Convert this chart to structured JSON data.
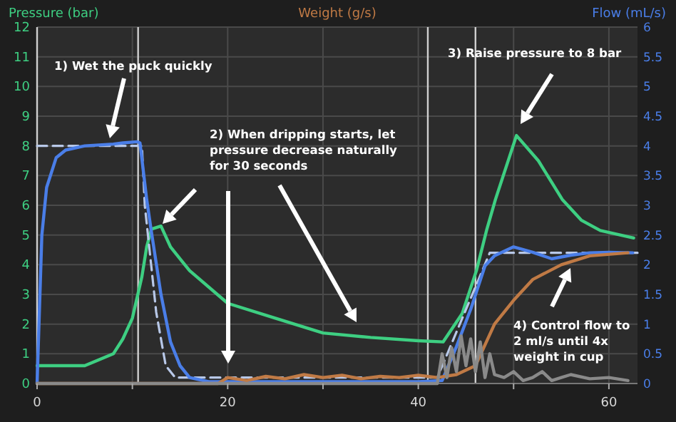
{
  "chart_data": {
    "type": "line",
    "ylabel": "Pressure (bar)",
    "y2label": "Flow (mL/s)",
    "xlim": [
      0,
      63
    ],
    "xticks": [
      0,
      {
        "value": 10,
        "label": null
      },
      20,
      {
        "value": 30,
        "label": null
      },
      40,
      {
        "value": 50,
        "label": null
      },
      60
    ],
    "ylim": [
      0,
      12
    ],
    "yticks": [
      0,
      1,
      2,
      3,
      4,
      5,
      6,
      7,
      8,
      9,
      10,
      11,
      12
    ],
    "y2lim": [
      0,
      6
    ],
    "y2ticks": [
      0,
      0.5,
      1,
      1.5,
      2,
      2.5,
      3,
      3.5,
      4,
      4.5,
      5,
      5.5,
      6
    ],
    "grid": true,
    "legend": "top",
    "marker": "none",
    "ref_lines": [
      {
        "axis": "x",
        "value": 0,
        "color": "#cfcfcf"
      },
      {
        "axis": "x",
        "value": 10.6,
        "color": "#cfcfcf"
      },
      {
        "axis": "x",
        "value": 41,
        "color": "#cfcfcf"
      },
      {
        "axis": "x",
        "value": 46,
        "color": "#cfcfcf"
      }
    ],
    "series": [
      {
        "color": "#3ecf82",
        "x": [
          0,
          5,
          8,
          9,
          10,
          11,
          11.5,
          12,
          13,
          14,
          16,
          20,
          25,
          30,
          35,
          40,
          42.6,
          44.6,
          46.1,
          47.2,
          48.1,
          50.3,
          52.6,
          55.1,
          57.1,
          59.1,
          62.6
        ],
        "values": [
          0.6,
          0.6,
          1.0,
          1.5,
          2.2,
          3.6,
          4.6,
          5.2,
          5.3,
          4.6,
          3.8,
          2.7,
          2.2,
          1.7,
          1.55,
          1.44,
          1.4,
          2.35,
          3.8,
          5.2,
          6.2,
          8.35,
          7.5,
          6.2,
          5.5,
          5.15,
          4.9
        ]
      },
      {
        "color": "#b8c8e8",
        "axis": "y2",
        "line_style": "dashed",
        "x": [
          0,
          11,
          11.3,
          12.5,
          13.5,
          14.5,
          42,
          47.5,
          63
        ],
        "values": [
          4.0,
          4.0,
          3.0,
          1.2,
          0.3,
          0.1,
          0.1,
          2.2,
          2.2
        ]
      },
      {
        "color": "#4a7ee8",
        "axis": "y2",
        "x": [
          0,
          0.5,
          1,
          2,
          3,
          5,
          8,
          9,
          10.5,
          10.8,
          11.5,
          12,
          13,
          14,
          15,
          16,
          18,
          30,
          40,
          42.5,
          44,
          45.5,
          47,
          48,
          50,
          52,
          54,
          56,
          58,
          60,
          62.5
        ],
        "values": [
          0,
          2.5,
          3.3,
          3.8,
          3.93,
          4.0,
          4.03,
          4.05,
          4.07,
          4.05,
          3.1,
          2.55,
          1.5,
          0.7,
          0.3,
          0.1,
          0.03,
          0.03,
          0.03,
          0.05,
          0.62,
          1.25,
          1.98,
          2.15,
          2.3,
          2.21,
          2.1,
          2.16,
          2.2,
          2.21,
          2.2
        ]
      },
      {
        "name": "Weight (g/s)",
        "color": "#c07a45",
        "axis": "y2",
        "x": [
          0,
          19,
          20,
          22,
          24,
          26,
          28,
          30,
          32,
          34,
          36,
          38,
          40,
          42,
          44,
          46,
          48,
          50,
          52,
          55,
          58,
          62
        ],
        "values": [
          0,
          0,
          0.1,
          0.05,
          0.12,
          0.08,
          0.15,
          0.1,
          0.14,
          0.08,
          0.12,
          0.1,
          0.14,
          0.1,
          0.15,
          0.3,
          1.0,
          1.4,
          1.75,
          2.0,
          2.15,
          2.2
        ]
      },
      {
        "color": "#8a8a8a",
        "axis": "y2",
        "x": [
          0,
          42,
          42.5,
          43,
          43.5,
          44,
          44.5,
          45,
          45.5,
          46,
          46.5,
          47,
          47.5,
          48,
          49,
          50,
          51,
          52,
          53,
          54,
          55,
          56,
          58,
          60,
          62
        ],
        "values": [
          0,
          0,
          0.5,
          0.1,
          0.6,
          0.2,
          0.8,
          0.3,
          0.75,
          0.2,
          0.7,
          0.1,
          0.5,
          0.15,
          0.1,
          0.2,
          0.05,
          0.1,
          0.2,
          0.05,
          0.1,
          0.15,
          0.08,
          0.1,
          0.05
        ]
      }
    ],
    "annotations": [
      "1) Wet the puck quickly",
      "2) When dripping starts, let pressure decrease naturally for 30 seconds",
      "3) Raise pressure to 8 bar",
      "4) Control flow to 2 ml/s until 4x weight in cup"
    ]
  }
}
